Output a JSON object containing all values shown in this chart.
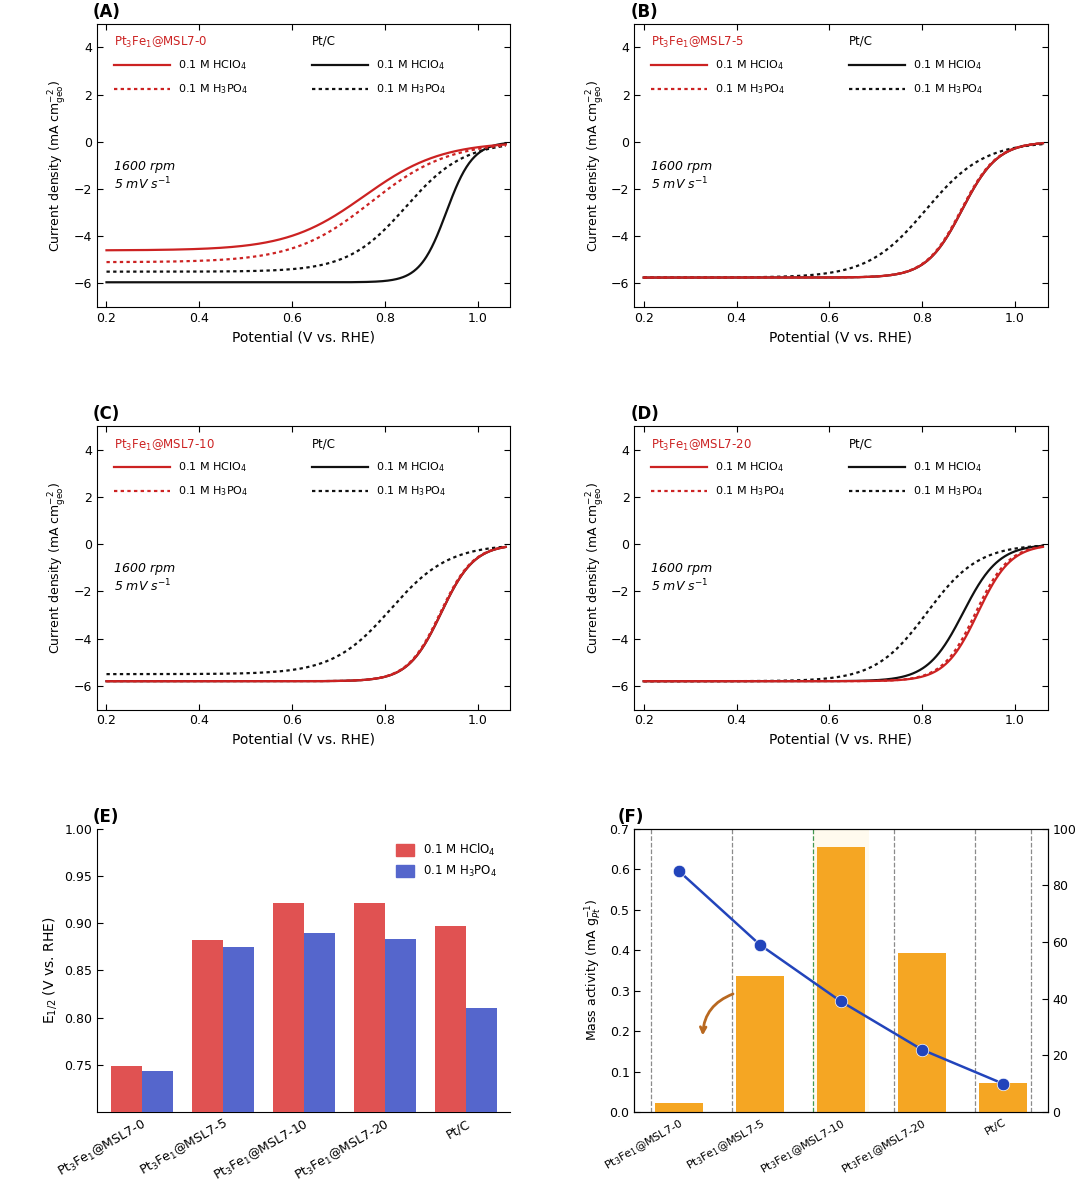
{
  "curve_params": {
    "A": {
      "red_solid": {
        "E_half": 0.755,
        "ilim": -4.6,
        "slope": 12
      },
      "red_dot": {
        "E_half": 0.77,
        "ilim": -5.1,
        "slope": 12
      },
      "black_solid": {
        "E_half": 0.932,
        "ilim": -5.95,
        "slope": 35
      },
      "black_dot": {
        "E_half": 0.845,
        "ilim": -5.5,
        "slope": 16
      }
    },
    "B": {
      "red_solid": {
        "E_half": 0.886,
        "ilim": -5.75,
        "slope": 26
      },
      "red_dot": {
        "E_half": 0.884,
        "ilim": -5.75,
        "slope": 26
      },
      "black_solid": {
        "E_half": 0.886,
        "ilim": -5.75,
        "slope": 26
      },
      "black_dot": {
        "E_half": 0.808,
        "ilim": -5.75,
        "slope": 16
      }
    },
    "C": {
      "red_solid": {
        "E_half": 0.921,
        "ilim": -5.8,
        "slope": 28
      },
      "red_dot": {
        "E_half": 0.919,
        "ilim": -5.8,
        "slope": 28
      },
      "black_solid": {
        "E_half": 0.921,
        "ilim": -5.8,
        "slope": 28
      },
      "black_dot": {
        "E_half": 0.812,
        "ilim": -5.5,
        "slope": 16
      }
    },
    "D": {
      "red_solid": {
        "E_half": 0.92,
        "ilim": -5.8,
        "slope": 28
      },
      "red_dot": {
        "E_half": 0.915,
        "ilim": -5.8,
        "slope": 28
      },
      "black_solid": {
        "E_half": 0.888,
        "ilim": -5.8,
        "slope": 26
      },
      "black_dot": {
        "E_half": 0.81,
        "ilim": -5.8,
        "slope": 18
      }
    }
  },
  "panel_labels": [
    "A",
    "B",
    "C",
    "D"
  ],
  "panel_titles": [
    "Pt$_3$Fe$_1$@MSL7-0",
    "Pt$_3$Fe$_1$@MSL7-5",
    "Pt$_3$Fe$_1$@MSL7-10",
    "Pt$_3$Fe$_1$@MSL7-20"
  ],
  "xlabel": "Potential (V vs. RHE)",
  "ylabel": "Current density (mA cm$^{-2}_{geo}$)",
  "x_ticks": [
    0.2,
    0.4,
    0.6,
    0.8,
    1.0
  ],
  "y_ticks": [
    -6,
    -4,
    -2,
    0,
    2,
    4
  ],
  "red_color": "#cc2222",
  "black_color": "#111111",
  "annotation_text": "1600 rpm\n5 mV s$^{-1}$",
  "bar_E_half": {
    "HClO4": [
      0.749,
      0.882,
      0.921,
      0.921,
      0.897
    ],
    "H3PO4": [
      0.743,
      0.875,
      0.889,
      0.883,
      0.81
    ],
    "color_HClO4": "#e05252",
    "color_H3PO4": "#5566cc",
    "ylim": [
      0.7,
      1.0
    ],
    "yticks": [
      0.75,
      0.8,
      0.85,
      0.9,
      0.95,
      1.0
    ]
  },
  "bar_F": {
    "mass_activity": [
      0.022,
      0.335,
      0.655,
      0.393,
      0.072
    ],
    "sieving_effect": [
      85,
      59,
      39,
      22,
      10
    ],
    "bar_color": "#f5a623",
    "dot_color": "#2244bb",
    "ylim_left": [
      0.0,
      0.7
    ],
    "ylim_right": [
      0,
      100
    ],
    "yticks_left": [
      0.0,
      0.1,
      0.2,
      0.3,
      0.4,
      0.5,
      0.6,
      0.7
    ],
    "yticks_right": [
      0,
      20,
      40,
      60,
      80,
      100
    ]
  },
  "cat_labels": [
    "Pt$_3$Fe$_1$\n@MSL7-0",
    "Pt$_3$Fe$_1$\n@MSL7-5",
    "Pt$_3$Fe$_1$\n@MSL7-10",
    "Pt$_3$Fe$_1$\n@MSL7-20",
    "Pt/C"
  ],
  "cat_labels_rot": [
    "Pt$_3$Fe$_1$@MSL7-0",
    "Pt$_3$Fe$_1$@MSL7-5",
    "Pt$_3$Fe$_1$@MSL7-10",
    "Pt$_3$Fe$_1$@MSL7-20",
    "Pt/C"
  ]
}
